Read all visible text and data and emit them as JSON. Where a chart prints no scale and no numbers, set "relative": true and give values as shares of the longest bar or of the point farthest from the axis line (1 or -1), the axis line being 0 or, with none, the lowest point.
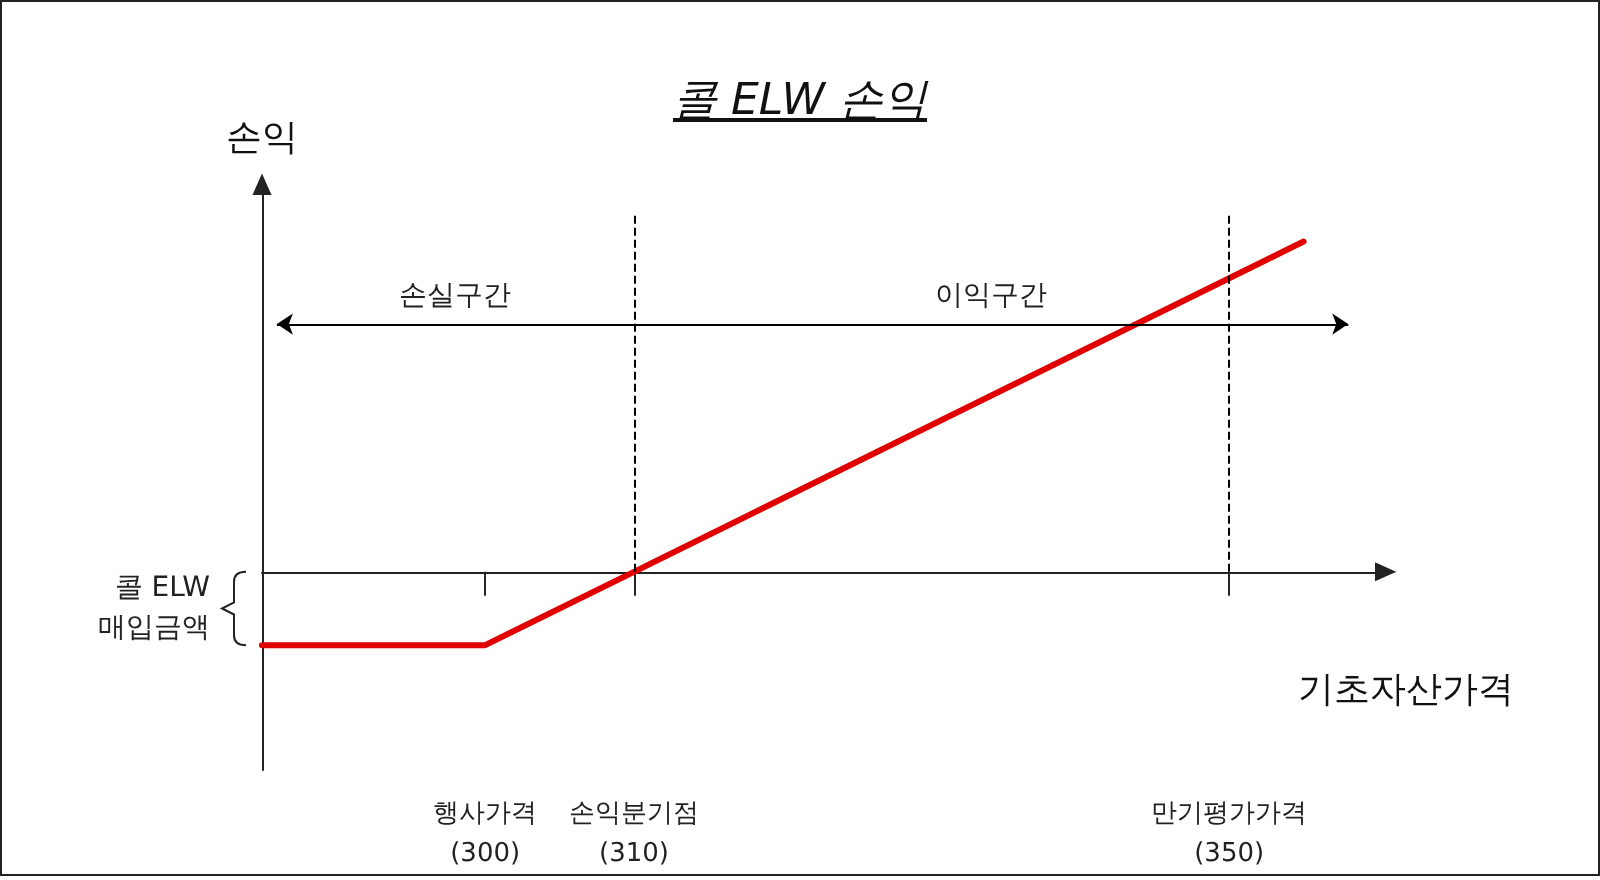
{
  "chart_data": {
    "type": "line",
    "title": "콜 ELW 손익",
    "ylabel": "손익",
    "xlabel": "기초자산가격",
    "relative": true,
    "x": [
      285,
      300,
      310,
      350,
      355
    ],
    "series": [
      {
        "color": "#e00000",
        "values": [
          -0.222,
          -0.222,
          0,
          0.889,
          1
        ]
      }
    ],
    "xlim": [
      285,
      360
    ],
    "xticks": [
      {
        "value": 300,
        "label": "행사가격\n(300)"
      },
      {
        "value": 310,
        "label": "손익분기점\n(310)"
      },
      {
        "value": 350,
        "label": "만기평가가격\n(350)"
      }
    ],
    "ref_lines": [
      {
        "axis": "x",
        "value": 310,
        "line_style": "dashed",
        "color": "#000000"
      },
      {
        "axis": "x",
        "value": 350,
        "line_style": "dashed",
        "color": "#000000"
      }
    ],
    "annotations": [
      "손실구간",
      "이익구간",
      "콜 ELW\n매입금액"
    ],
    "grid": false,
    "marker": "none",
    "line_style": "solid"
  }
}
